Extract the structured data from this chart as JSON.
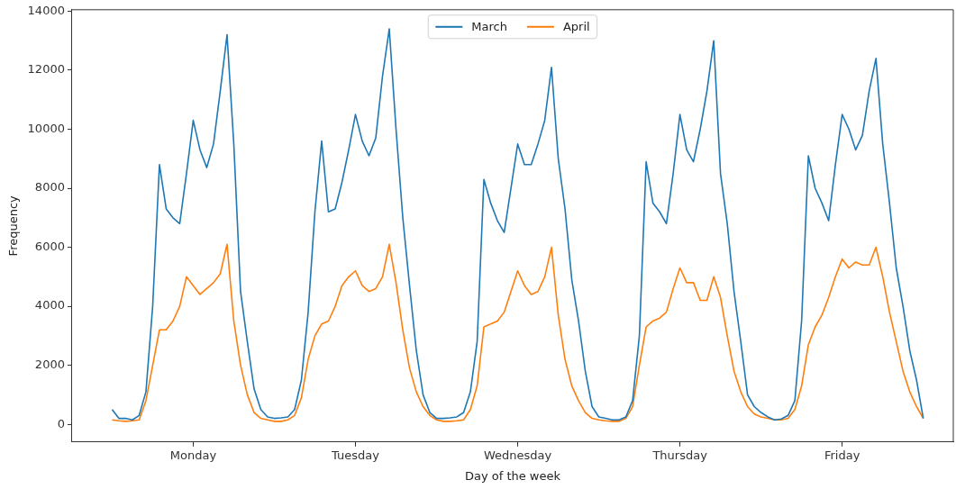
{
  "chart_data": {
    "type": "line",
    "xlabel": "Day of the week",
    "ylabel": "Frequency",
    "categories": [
      null,
      null,
      null,
      null,
      null,
      null,
      null,
      null,
      null,
      null,
      null,
      null,
      "Monday",
      null,
      null,
      null,
      null,
      null,
      null,
      null,
      null,
      null,
      null,
      null,
      null,
      null,
      null,
      null,
      null,
      null,
      null,
      null,
      null,
      null,
      null,
      null,
      "Tuesday",
      null,
      null,
      null,
      null,
      null,
      null,
      null,
      null,
      null,
      null,
      null,
      null,
      null,
      null,
      null,
      null,
      null,
      null,
      null,
      null,
      null,
      null,
      null,
      "Wednesday",
      null,
      null,
      null,
      null,
      null,
      null,
      null,
      null,
      null,
      null,
      null,
      null,
      null,
      null,
      null,
      null,
      null,
      null,
      null,
      null,
      null,
      null,
      null,
      "Thursday",
      null,
      null,
      null,
      null,
      null,
      null,
      null,
      null,
      null,
      null,
      null,
      null,
      null,
      null,
      null,
      null,
      null,
      null,
      null,
      null,
      null,
      null,
      null,
      "Friday",
      null,
      null,
      null,
      null,
      null,
      null,
      null,
      null,
      null,
      null,
      null,
      null
    ],
    "ylim": [
      -600,
      14050
    ],
    "yticks": [
      0,
      2000,
      4000,
      6000,
      8000,
      10000,
      12000,
      14000
    ],
    "grid": false,
    "legend": "top",
    "marker": "none",
    "line_style": "solid",
    "series": [
      {
        "name": "March",
        "color": "#1f77b4",
        "values": [
          500,
          200,
          200,
          150,
          300,
          1100,
          4000,
          8800,
          7300,
          7000,
          6800,
          8500,
          10300,
          9300,
          8700,
          9500,
          11300,
          13200,
          9500,
          4500,
          2800,
          1200,
          500,
          250,
          200,
          220,
          250,
          500,
          1500,
          3800,
          7200,
          9600,
          7200,
          7300,
          8200,
          9300,
          10500,
          9600,
          9100,
          9700,
          11800,
          13400,
          10000,
          7000,
          4700,
          2500,
          1000,
          400,
          200,
          200,
          220,
          250,
          400,
          1100,
          2800,
          8300,
          7500,
          6900,
          6500,
          8000,
          9500,
          8800,
          8800,
          9500,
          10300,
          12100,
          9000,
          7300,
          4900,
          3500,
          1800,
          600,
          250,
          200,
          150,
          150,
          250,
          800,
          3000,
          8900,
          7500,
          7200,
          6800,
          8500,
          10500,
          9300,
          8900,
          10000,
          11300,
          13000,
          8500,
          6800,
          4500,
          2800,
          1000,
          600,
          400,
          250,
          150,
          180,
          300,
          800,
          3500,
          9100,
          8000,
          7500,
          6900,
          8800,
          10500,
          10000,
          9300,
          9800,
          11300,
          12400,
          9500,
          7500,
          5300,
          4000,
          2500,
          1500,
          200
        ]
      },
      {
        "name": "April",
        "color": "#ff7f0e",
        "values": [
          150,
          120,
          100,
          120,
          150,
          800,
          2000,
          3200,
          3200,
          3500,
          4000,
          5000,
          4700,
          4400,
          4600,
          4800,
          5100,
          6100,
          3500,
          2000,
          1000,
          400,
          200,
          150,
          100,
          100,
          150,
          300,
          900,
          2200,
          3000,
          3400,
          3500,
          4000,
          4700,
          5000,
          5200,
          4700,
          4500,
          4600,
          5000,
          6100,
          4800,
          3200,
          1900,
          1100,
          600,
          300,
          150,
          100,
          100,
          120,
          150,
          500,
          1300,
          3300,
          3400,
          3500,
          3800,
          4500,
          5200,
          4700,
          4400,
          4500,
          5000,
          6000,
          3700,
          2200,
          1300,
          800,
          400,
          200,
          150,
          120,
          100,
          100,
          200,
          600,
          2000,
          3300,
          3500,
          3600,
          3800,
          4600,
          5300,
          4800,
          4800,
          4200,
          4200,
          5000,
          4300,
          3000,
          1800,
          1100,
          600,
          350,
          250,
          200,
          150,
          150,
          200,
          500,
          1300,
          2700,
          3300,
          3700,
          4300,
          5000,
          5600,
          5300,
          5500,
          5400,
          5400,
          6000,
          5000,
          3800,
          2800,
          1800,
          1100,
          600,
          200
        ]
      }
    ]
  }
}
